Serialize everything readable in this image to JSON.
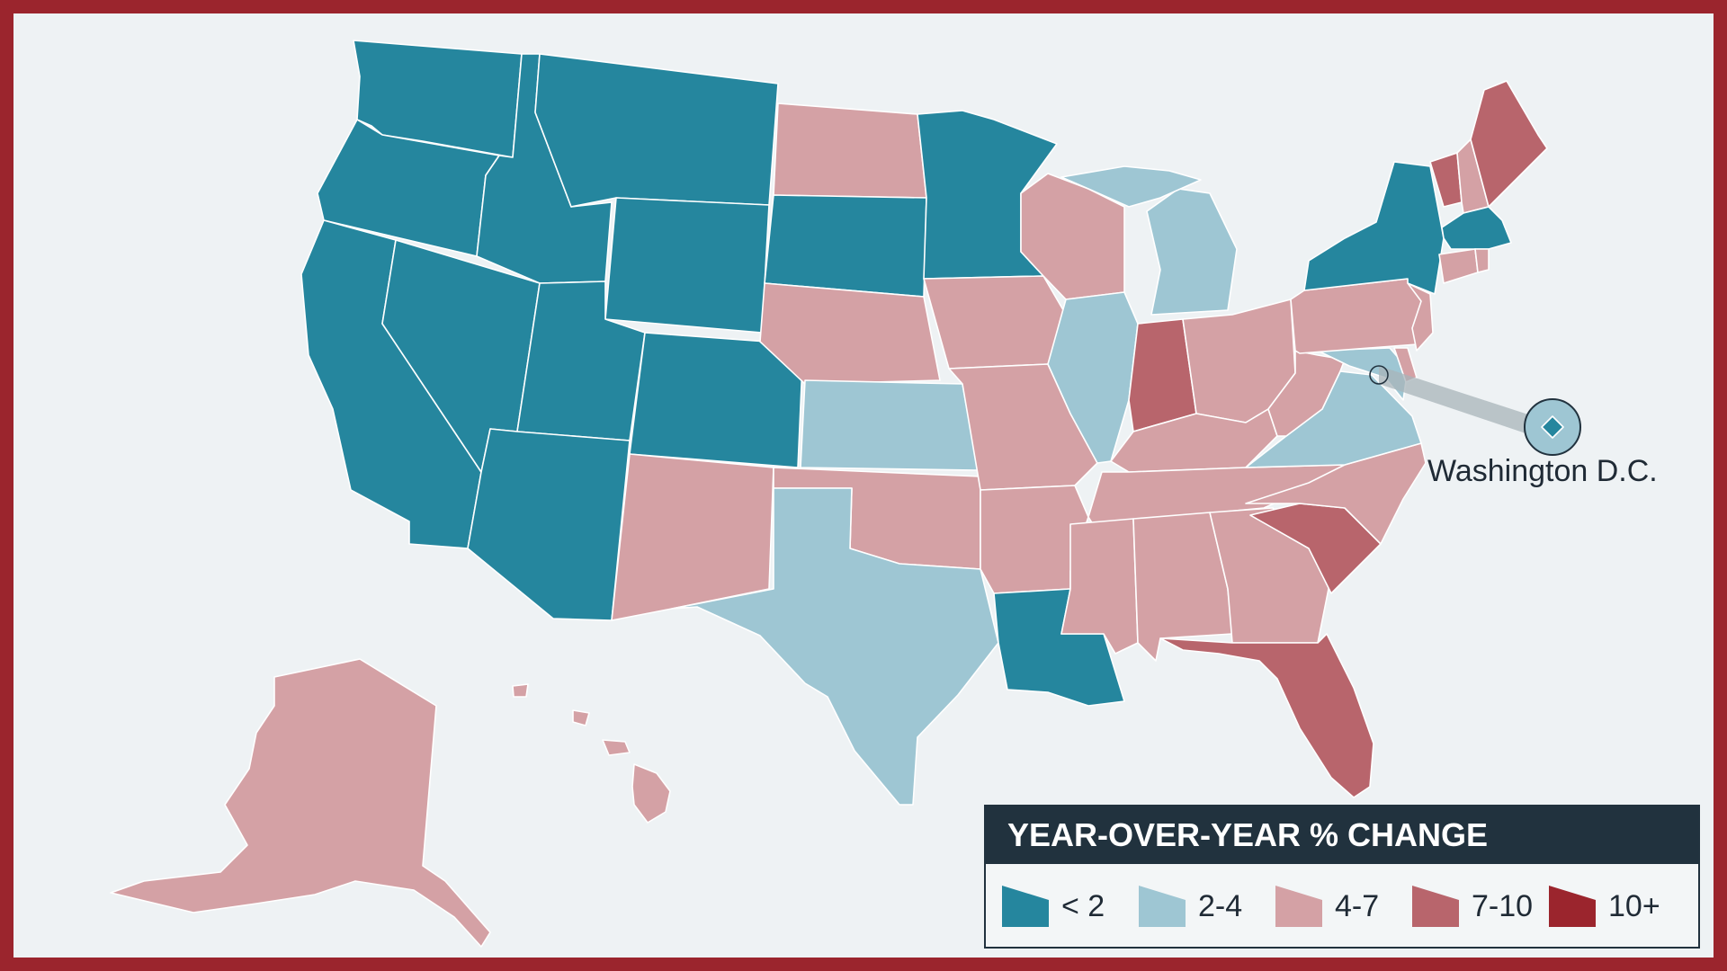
{
  "map": {
    "dc_callout": "Washington D.C.",
    "colors": {
      "lt2": "#25869e",
      "2to4": "#9ec6d3",
      "4to7": "#d4a1a5",
      "7to10": "#b8656c",
      "10plus": "#9b252d",
      "frame": "#9b252d",
      "background": "#eef2f4"
    },
    "states": {
      "WA": "lt2",
      "OR": "lt2",
      "CA": "lt2",
      "ID": "lt2",
      "NV": "lt2",
      "MT": "lt2",
      "WY": "lt2",
      "UT": "lt2",
      "AZ": "lt2",
      "CO": "lt2",
      "SD": "lt2",
      "MN": "lt2",
      "LA": "lt2",
      "NY": "lt2",
      "MA": "lt2",
      "DC": "lt2",
      "KS": "2to4",
      "TX": "2to4",
      "IL": "2to4",
      "MI": "2to4",
      "VA": "2to4",
      "MD": "2to4",
      "ND": "4to7",
      "NE": "4to7",
      "NM": "4to7",
      "OK": "4to7",
      "IA": "4to7",
      "MO": "4to7",
      "AR": "4to7",
      "WI": "4to7",
      "MS": "4to7",
      "AL": "4to7",
      "GA": "4to7",
      "TN": "4to7",
      "KY": "4to7",
      "OH": "4to7",
      "WV": "4to7",
      "PA": "4to7",
      "NC": "4to7",
      "NJ": "4to7",
      "DE": "4to7",
      "CT": "4to7",
      "RI": "4to7",
      "NH": "4to7",
      "AK": "4to7",
      "HI": "4to7",
      "IN": "7to10",
      "SC": "7to10",
      "FL": "7to10",
      "ME": "7to10",
      "VT": "7to10"
    }
  },
  "legend": {
    "title": "YEAR-OVER-YEAR % CHANGE",
    "items": [
      {
        "key": "lt2",
        "label": "< 2"
      },
      {
        "key": "2to4",
        "label": "2-4"
      },
      {
        "key": "4to7",
        "label": "4-7"
      },
      {
        "key": "7to10",
        "label": "7-10"
      },
      {
        "key": "10plus",
        "label": "10+"
      }
    ]
  }
}
